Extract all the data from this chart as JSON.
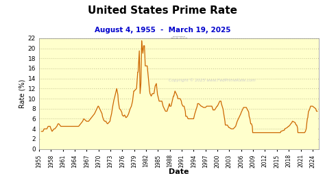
{
  "title": "United States Prime Rate",
  "subtitle": "August 4, 1955  -  March 19, 2025",
  "xlabel": "Date",
  "ylabel": "Rate (%)",
  "title_color": "#000000",
  "subtitle_color": "#0000cc",
  "line_color": "#cc6600",
  "fill_color": "#ffffcc",
  "background_color": "#ffffff",
  "grid_color": "#cccc99",
  "copyright_text": "Copyright © 2025 www.FedPrimeRate.com",
  "ylim": [
    0,
    22
  ],
  "yticks": [
    0,
    2,
    4,
    6,
    8,
    10,
    12,
    14,
    16,
    18,
    20,
    22
  ],
  "xtick_years": [
    1955,
    1958,
    1961,
    1964,
    1967,
    1970,
    1973,
    1976,
    1979,
    1982,
    1985,
    1988,
    1991,
    1994,
    1997,
    2000,
    2003,
    2006,
    2009,
    2012,
    2015,
    2018,
    2021,
    2024
  ],
  "data": [
    [
      1955.6,
      3.5
    ],
    [
      1956.0,
      3.5
    ],
    [
      1956.3,
      4.0
    ],
    [
      1957.0,
      4.0
    ],
    [
      1957.3,
      4.5
    ],
    [
      1957.8,
      4.5
    ],
    [
      1958.0,
      4.0
    ],
    [
      1958.3,
      3.5
    ],
    [
      1958.8,
      4.0
    ],
    [
      1959.0,
      4.0
    ],
    [
      1959.5,
      4.5
    ],
    [
      1959.8,
      5.0
    ],
    [
      1960.0,
      5.0
    ],
    [
      1960.5,
      4.5
    ],
    [
      1961.0,
      4.5
    ],
    [
      1962.0,
      4.5
    ],
    [
      1963.0,
      4.5
    ],
    [
      1964.0,
      4.5
    ],
    [
      1965.0,
      4.5
    ],
    [
      1965.5,
      5.0
    ],
    [
      1966.0,
      5.5
    ],
    [
      1966.3,
      6.0
    ],
    [
      1967.0,
      5.5
    ],
    [
      1967.5,
      5.5
    ],
    [
      1968.0,
      6.0
    ],
    [
      1968.5,
      6.5
    ],
    [
      1969.0,
      7.0
    ],
    [
      1969.3,
      7.5
    ],
    [
      1969.6,
      8.0
    ],
    [
      1969.9,
      8.5
    ],
    [
      1970.0,
      8.5
    ],
    [
      1970.3,
      8.0
    ],
    [
      1970.6,
      7.5
    ],
    [
      1970.9,
      7.0
    ],
    [
      1971.0,
      6.5
    ],
    [
      1971.3,
      5.75
    ],
    [
      1971.6,
      5.5
    ],
    [
      1971.9,
      5.5
    ],
    [
      1972.0,
      5.25
    ],
    [
      1972.3,
      5.0
    ],
    [
      1972.6,
      5.25
    ],
    [
      1972.9,
      5.5
    ],
    [
      1973.0,
      6.0
    ],
    [
      1973.3,
      7.0
    ],
    [
      1973.6,
      8.5
    ],
    [
      1973.9,
      9.75
    ],
    [
      1974.0,
      10.0
    ],
    [
      1974.3,
      11.0
    ],
    [
      1974.6,
      12.0
    ],
    [
      1974.9,
      10.75
    ],
    [
      1975.0,
      9.5
    ],
    [
      1975.3,
      8.0
    ],
    [
      1975.6,
      7.75
    ],
    [
      1975.9,
      7.25
    ],
    [
      1976.0,
      6.75
    ],
    [
      1976.3,
      6.5
    ],
    [
      1976.6,
      6.75
    ],
    [
      1976.9,
      6.25
    ],
    [
      1977.0,
      6.25
    ],
    [
      1977.3,
      6.5
    ],
    [
      1977.6,
      7.0
    ],
    [
      1977.9,
      7.75
    ],
    [
      1978.0,
      8.0
    ],
    [
      1978.3,
      8.5
    ],
    [
      1978.6,
      9.5
    ],
    [
      1978.9,
      11.5
    ],
    [
      1979.0,
      11.5
    ],
    [
      1979.3,
      11.75
    ],
    [
      1979.6,
      12.0
    ],
    [
      1979.9,
      15.25
    ],
    [
      1980.0,
      15.25
    ],
    [
      1980.3,
      19.5
    ],
    [
      1980.5,
      11.0
    ],
    [
      1980.7,
      13.0
    ],
    [
      1980.9,
      21.5
    ],
    [
      1981.0,
      20.5
    ],
    [
      1981.2,
      19.0
    ],
    [
      1981.4,
      20.5
    ],
    [
      1981.6,
      20.5
    ],
    [
      1981.8,
      16.5
    ],
    [
      1982.0,
      16.5
    ],
    [
      1982.3,
      16.5
    ],
    [
      1982.6,
      14.0
    ],
    [
      1982.9,
      11.5
    ],
    [
      1983.0,
      11.0
    ],
    [
      1983.3,
      10.5
    ],
    [
      1983.6,
      11.0
    ],
    [
      1983.9,
      11.0
    ],
    [
      1984.0,
      11.0
    ],
    [
      1984.3,
      12.5
    ],
    [
      1984.6,
      13.0
    ],
    [
      1984.9,
      10.75
    ],
    [
      1985.0,
      10.5
    ],
    [
      1985.3,
      9.5
    ],
    [
      1985.6,
      9.5
    ],
    [
      1985.9,
      9.5
    ],
    [
      1986.0,
      9.5
    ],
    [
      1986.3,
      8.5
    ],
    [
      1986.6,
      8.0
    ],
    [
      1986.9,
      7.5
    ],
    [
      1987.0,
      7.5
    ],
    [
      1987.3,
      7.5
    ],
    [
      1987.6,
      8.25
    ],
    [
      1987.9,
      9.0
    ],
    [
      1988.0,
      8.5
    ],
    [
      1988.3,
      8.5
    ],
    [
      1988.6,
      9.5
    ],
    [
      1988.9,
      10.5
    ],
    [
      1989.0,
      10.5
    ],
    [
      1989.3,
      11.5
    ],
    [
      1989.6,
      11.0
    ],
    [
      1989.9,
      10.5
    ],
    [
      1990.0,
      10.0
    ],
    [
      1990.3,
      10.0
    ],
    [
      1990.6,
      10.0
    ],
    [
      1990.9,
      9.5
    ],
    [
      1991.0,
      9.0
    ],
    [
      1991.3,
      8.5
    ],
    [
      1991.6,
      8.5
    ],
    [
      1991.9,
      7.5
    ],
    [
      1992.0,
      6.5
    ],
    [
      1992.3,
      6.5
    ],
    [
      1992.6,
      6.0
    ],
    [
      1992.9,
      6.0
    ],
    [
      1993.0,
      6.0
    ],
    [
      1993.5,
      6.0
    ],
    [
      1993.9,
      6.0
    ],
    [
      1994.0,
      6.0
    ],
    [
      1994.3,
      7.0
    ],
    [
      1994.6,
      7.75
    ],
    [
      1994.9,
      8.5
    ],
    [
      1995.0,
      9.0
    ],
    [
      1995.3,
      9.0
    ],
    [
      1995.6,
      8.75
    ],
    [
      1995.9,
      8.5
    ],
    [
      1996.0,
      8.5
    ],
    [
      1996.5,
      8.25
    ],
    [
      1996.9,
      8.25
    ],
    [
      1997.0,
      8.25
    ],
    [
      1997.3,
      8.5
    ],
    [
      1997.6,
      8.5
    ],
    [
      1997.9,
      8.5
    ],
    [
      1998.0,
      8.5
    ],
    [
      1998.3,
      8.5
    ],
    [
      1998.6,
      8.5
    ],
    [
      1998.8,
      8.0
    ],
    [
      1998.9,
      7.75
    ],
    [
      1999.0,
      7.75
    ],
    [
      1999.3,
      7.75
    ],
    [
      1999.5,
      8.0
    ],
    [
      1999.7,
      8.25
    ],
    [
      1999.9,
      8.5
    ],
    [
      2000.0,
      8.5
    ],
    [
      2000.3,
      9.0
    ],
    [
      2000.6,
      9.5
    ],
    [
      2000.9,
      9.5
    ],
    [
      2001.0,
      9.0
    ],
    [
      2001.2,
      8.5
    ],
    [
      2001.4,
      8.0
    ],
    [
      2001.6,
      7.0
    ],
    [
      2001.7,
      6.5
    ],
    [
      2001.8,
      6.0
    ],
    [
      2001.9,
      5.5
    ],
    [
      2002.0,
      4.75
    ],
    [
      2002.5,
      4.75
    ],
    [
      2002.9,
      4.25
    ],
    [
      2003.0,
      4.25
    ],
    [
      2003.5,
      4.0
    ],
    [
      2003.9,
      4.0
    ],
    [
      2004.0,
      4.0
    ],
    [
      2004.3,
      4.25
    ],
    [
      2004.6,
      4.5
    ],
    [
      2004.9,
      5.25
    ],
    [
      2005.0,
      5.5
    ],
    [
      2005.3,
      6.0
    ],
    [
      2005.6,
      6.5
    ],
    [
      2005.9,
      7.0
    ],
    [
      2006.0,
      7.25
    ],
    [
      2006.3,
      7.75
    ],
    [
      2006.6,
      8.25
    ],
    [
      2006.9,
      8.25
    ],
    [
      2007.0,
      8.25
    ],
    [
      2007.3,
      8.25
    ],
    [
      2007.6,
      7.75
    ],
    [
      2007.8,
      7.5
    ],
    [
      2007.9,
      7.25
    ],
    [
      2008.0,
      6.5
    ],
    [
      2008.2,
      6.0
    ],
    [
      2008.4,
      5.0
    ],
    [
      2008.6,
      5.0
    ],
    [
      2008.8,
      4.5
    ],
    [
      2008.9,
      3.25
    ],
    [
      2009.0,
      3.25
    ],
    [
      2015.9,
      3.25
    ],
    [
      2015.9,
      3.25
    ],
    [
      2016.0,
      3.5
    ],
    [
      2016.9,
      3.75
    ],
    [
      2017.0,
      4.0
    ],
    [
      2017.6,
      4.25
    ],
    [
      2017.9,
      4.5
    ],
    [
      2018.0,
      4.5
    ],
    [
      2018.3,
      4.75
    ],
    [
      2018.5,
      5.0
    ],
    [
      2018.8,
      5.25
    ],
    [
      2018.9,
      5.5
    ],
    [
      2019.0,
      5.5
    ],
    [
      2019.6,
      5.25
    ],
    [
      2019.7,
      5.0
    ],
    [
      2019.9,
      4.75
    ],
    [
      2020.0,
      4.75
    ],
    [
      2020.2,
      4.25
    ],
    [
      2020.3,
      3.25
    ],
    [
      2020.4,
      3.25
    ],
    [
      2021.0,
      3.25
    ],
    [
      2022.0,
      3.25
    ],
    [
      2022.2,
      3.5
    ],
    [
      2022.4,
      4.0
    ],
    [
      2022.5,
      4.75
    ],
    [
      2022.6,
      5.5
    ],
    [
      2022.7,
      6.0
    ],
    [
      2022.8,
      6.25
    ],
    [
      2022.9,
      7.0
    ],
    [
      2023.0,
      7.5
    ],
    [
      2023.2,
      7.75
    ],
    [
      2023.3,
      8.0
    ],
    [
      2023.4,
      8.25
    ],
    [
      2023.5,
      8.5
    ],
    [
      2023.6,
      8.5
    ],
    [
      2024.0,
      8.5
    ],
    [
      2024.8,
      8.0
    ],
    [
      2024.9,
      7.75
    ],
    [
      2025.0,
      7.5
    ],
    [
      2025.2,
      7.5
    ]
  ]
}
